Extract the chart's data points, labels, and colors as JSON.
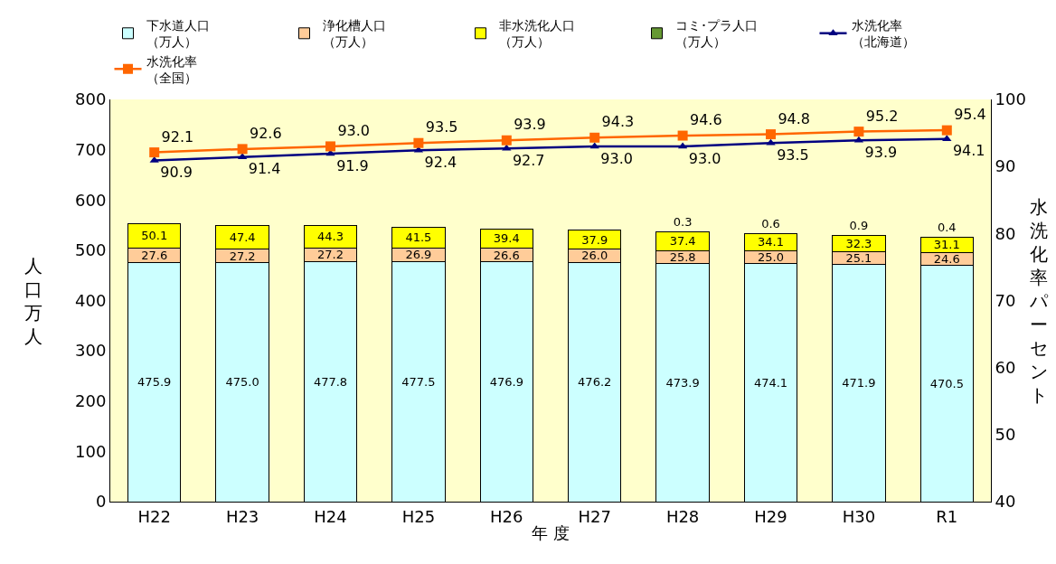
{
  "chart_data": {
    "type": "bar",
    "stacked": true,
    "xlabel": "年 度",
    "ylabel": "人口万人",
    "y2label": "水洗化率パーセント",
    "categories": [
      "H22",
      "H23",
      "H24",
      "H25",
      "H26",
      "H27",
      "H28",
      "H29",
      "H30",
      "R1"
    ],
    "ylim": [
      0,
      800
    ],
    "yticks": [
      0,
      100,
      200,
      300,
      400,
      500,
      600,
      700,
      800
    ],
    "y2lim": [
      40,
      100
    ],
    "y2ticks": [
      40,
      50,
      60,
      70,
      80,
      90,
      100
    ],
    "grid": false,
    "legend": "top",
    "series": [
      {
        "name": "下水道人口（万人）",
        "color": "#ccffff",
        "values": [
          475.9,
          475.0,
          477.8,
          477.5,
          476.9,
          476.2,
          473.9,
          474.1,
          471.9,
          470.5
        ],
        "value_labels": [
          "475.9",
          "475.0",
          "477.8",
          "477.5",
          "476.9",
          "476.2",
          "473.9",
          "474.1",
          "471.9",
          "470.5"
        ]
      },
      {
        "name": "浄化槽人口（万人）",
        "color": "#ffcc99",
        "values": [
          27.6,
          27.2,
          27.2,
          26.9,
          26.6,
          26.0,
          25.8,
          25.0,
          25.1,
          24.6
        ],
        "value_labels": [
          "27.6",
          "27.2",
          "27.2",
          "26.9",
          "26.6",
          "26.0",
          "25.8",
          "25.0",
          "25.1",
          "24.6"
        ]
      },
      {
        "name": "非水洗化人口（万人）",
        "color": "#ffff00",
        "values": [
          50.1,
          47.4,
          44.3,
          41.5,
          39.4,
          37.9,
          37.4,
          34.1,
          32.3,
          31.1
        ],
        "value_labels": [
          "50.1",
          "47.4",
          "44.3",
          "41.5",
          "39.4",
          "37.9",
          "37.4",
          "34.1",
          "32.3",
          "31.1"
        ]
      },
      {
        "name": "コミ･プラ人口（万人）",
        "color": "#669933",
        "values": [
          null,
          null,
          null,
          null,
          null,
          null,
          0.3,
          0.6,
          0.9,
          0.4
        ],
        "value_labels": [
          null,
          null,
          null,
          null,
          null,
          null,
          "0.3",
          "0.6",
          "0.9",
          "0.4"
        ]
      },
      {
        "name": "水洗化率（北海道）",
        "type": "line",
        "axis": "y2",
        "color": "#000080",
        "marker": "triangle",
        "values": [
          90.9,
          91.4,
          91.9,
          92.4,
          92.7,
          93.0,
          93.0,
          93.5,
          93.9,
          94.1
        ],
        "value_labels": [
          "90.9",
          "91.4",
          "91.9",
          "92.4",
          "92.7",
          "93.0",
          "93.0",
          "93.5",
          "93.9",
          "94.1"
        ]
      },
      {
        "name": "水洗化率（全国）",
        "type": "line",
        "axis": "y2",
        "color": "#ff6600",
        "marker": "square",
        "values": [
          92.1,
          92.6,
          93.0,
          93.5,
          93.9,
          94.3,
          94.6,
          94.8,
          95.2,
          95.4
        ],
        "value_labels": [
          "92.1",
          "92.6",
          "93.0",
          "93.5",
          "93.9",
          "94.3",
          "94.6",
          "94.8",
          "95.2",
          "95.4"
        ]
      }
    ]
  }
}
